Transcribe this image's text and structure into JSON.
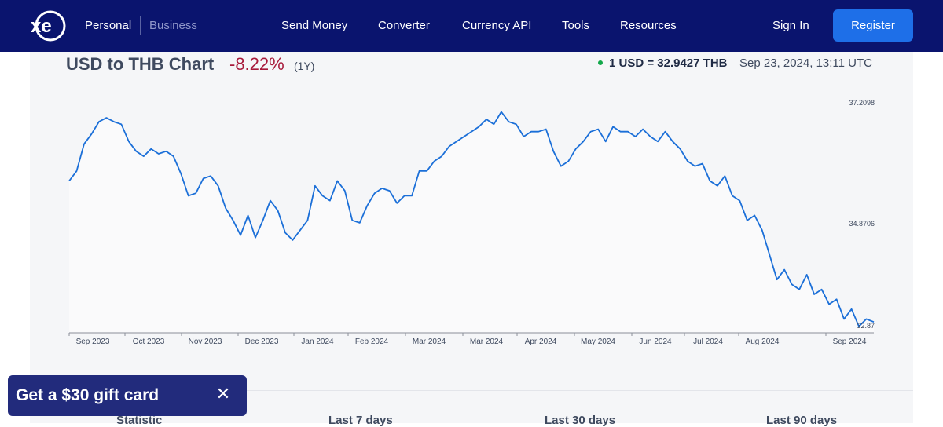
{
  "nav": {
    "segments": {
      "personal": "Personal",
      "business": "Business"
    },
    "links": [
      "Send Money",
      "Converter",
      "Currency API",
      "Tools",
      "Resources"
    ],
    "sign_in": "Sign In",
    "register": "Register",
    "colors": {
      "bar": "#0a146e",
      "register": "#1e6fe8"
    }
  },
  "chart_header": {
    "title": "USD to THB Chart",
    "change": "-8.22%",
    "period": "(1Y)",
    "rate": "1 USD = 32.9427 THB",
    "timestamp": "Sep 23, 2024, 13:11 UTC",
    "colors": {
      "change": "#a7193a",
      "live_dot": "#12a84a"
    }
  },
  "chart_data": {
    "type": "line",
    "title": "USD to THB Chart",
    "xlabel": "",
    "ylabel": "",
    "x_tick_labels": [
      "Sep 2023",
      "Oct 2023",
      "Nov 2023",
      "Dec 2023",
      "Jan 2024",
      "Feb 2024",
      "Mar 2024",
      "Mar 2024",
      "Apr 2024",
      "May 2024",
      "Jun 2024",
      "Jul 2024",
      "Aug 2024",
      "Sep 2024"
    ],
    "y_tick_labels": [
      "37.2098",
      "34.8706",
      "32.87"
    ],
    "ylim": [
      32.72,
      37.4
    ],
    "line_color": "#1b6fd8",
    "series": [
      {
        "values": [
          35.8,
          36.0,
          36.55,
          36.75,
          37.0,
          37.08,
          37.0,
          36.95,
          36.6,
          36.4,
          36.3,
          36.45,
          36.35,
          36.4,
          36.3,
          35.95,
          35.5,
          35.55,
          35.85,
          35.9,
          35.7,
          35.25,
          35.0,
          34.7,
          35.1,
          34.65,
          35.0,
          35.4,
          35.2,
          34.75,
          34.6,
          34.8,
          35.0,
          35.7,
          35.5,
          35.4,
          35.8,
          35.6,
          35.0,
          34.95,
          35.3,
          35.55,
          35.65,
          35.6,
          35.35,
          35.5,
          35.5,
          36.0,
          36.0,
          36.2,
          36.3,
          36.5,
          36.6,
          36.7,
          36.8,
          36.9,
          37.05,
          36.95,
          37.2,
          37.0,
          36.95,
          36.7,
          36.8,
          36.8,
          36.85,
          36.4,
          36.1,
          36.2,
          36.45,
          36.6,
          36.8,
          36.85,
          36.6,
          36.9,
          36.8,
          36.8,
          36.7,
          36.85,
          36.7,
          36.6,
          36.8,
          36.6,
          36.45,
          36.2,
          36.1,
          36.15,
          35.8,
          35.7,
          35.9,
          35.5,
          35.4,
          35.0,
          35.1,
          34.8,
          34.3,
          33.8,
          34.0,
          33.7,
          33.6,
          33.9,
          33.5,
          33.6,
          33.3,
          33.4,
          33.0,
          33.2,
          32.85,
          33.0,
          32.94
        ]
      }
    ],
    "grid": false
  },
  "stats_header": {
    "columns": [
      "Statistic",
      "Last 7 days",
      "Last 30 days",
      "Last 90 days"
    ]
  },
  "promo": {
    "text": "Get a $30 gift card",
    "close_icon": "close-icon",
    "color": "#222b7c"
  }
}
